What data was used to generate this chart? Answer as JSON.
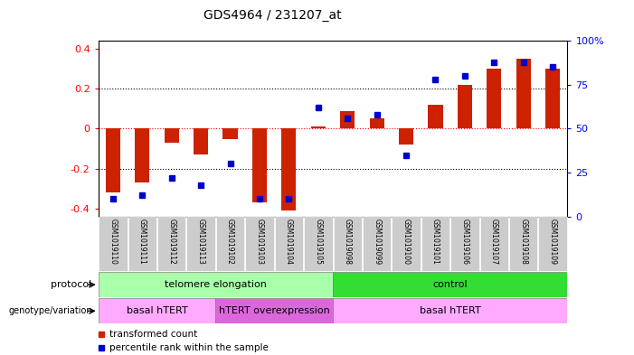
{
  "title": "GDS4964 / 231207_at",
  "samples": [
    "GSM1019110",
    "GSM1019111",
    "GSM1019112",
    "GSM1019113",
    "GSM1019102",
    "GSM1019103",
    "GSM1019104",
    "GSM1019105",
    "GSM1019098",
    "GSM1019099",
    "GSM1019100",
    "GSM1019101",
    "GSM1019106",
    "GSM1019107",
    "GSM1019108",
    "GSM1019109"
  ],
  "red_bars": [
    -0.32,
    -0.27,
    -0.07,
    -0.13,
    -0.05,
    -0.37,
    -0.41,
    0.01,
    0.09,
    0.05,
    -0.08,
    0.12,
    0.22,
    0.3,
    0.35,
    0.3
  ],
  "blue_dots": [
    10,
    12,
    22,
    18,
    30,
    10,
    10,
    62,
    56,
    58,
    35,
    78,
    80,
    88,
    88,
    85
  ],
  "ylim_left": [
    -0.44,
    0.44
  ],
  "ylim_right": [
    0,
    100
  ],
  "yticks_left": [
    -0.4,
    -0.2,
    0.0,
    0.2,
    0.4
  ],
  "yticks_right": [
    0,
    25,
    50,
    75,
    100
  ],
  "ytick_labels_right": [
    "0",
    "25",
    "50",
    "75",
    "100%"
  ],
  "hline_dotted": [
    -0.2,
    0.2
  ],
  "hline_black_dotted": 0.0,
  "hline_red": 0.0,
  "protocol_groups": [
    {
      "label": "telomere elongation",
      "start": 0,
      "end": 8,
      "color": "#AAFFAA"
    },
    {
      "label": "control",
      "start": 8,
      "end": 16,
      "color": "#33DD33"
    }
  ],
  "genotype_groups": [
    {
      "label": "basal hTERT",
      "start": 0,
      "end": 4,
      "color": "#FFAAFF"
    },
    {
      "label": "hTERT overexpression",
      "start": 4,
      "end": 8,
      "color": "#DD66DD"
    },
    {
      "label": "basal hTERT",
      "start": 8,
      "end": 16,
      "color": "#FFAAFF"
    }
  ],
  "bar_color": "#CC2200",
  "dot_color": "#0000CC",
  "bg_color": "#FFFFFF",
  "plot_bg": "#FFFFFF",
  "tick_label_bg": "#CCCCCC",
  "legend_red_label": "transformed count",
  "legend_blue_label": "percentile rank within the sample"
}
